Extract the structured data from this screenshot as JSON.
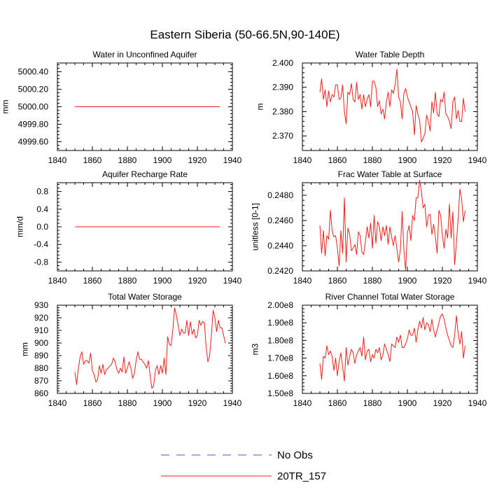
{
  "title": "Eastern Siberia (50-66.5N,90-140E)",
  "colors": {
    "model": "#e8201c",
    "obs": "#4a56c4",
    "frame": "#000000"
  },
  "legend": [
    {
      "label": "No Obs",
      "style": "dashed",
      "color": "#4a56c4"
    },
    {
      "label": "20TR_157",
      "style": "solid",
      "color": "#e8201c"
    }
  ],
  "chart_data": [
    {
      "type": "line",
      "title": "Water in Unconfined Aquifer",
      "ylabel": "mm",
      "xlim": [
        1840,
        1940
      ],
      "ylim": [
        4999.5,
        5000.5
      ],
      "xticks": [
        1840,
        1860,
        1880,
        1900,
        1920,
        1940
      ],
      "yticks": [
        4999.6,
        4999.8,
        5000.0,
        5000.2,
        5000.4
      ],
      "ytick_labels": [
        "4999.60",
        "4999.80",
        "5000.00",
        "5000.20",
        "5000.40"
      ],
      "series": [
        {
          "name": "20TR_157",
          "x_start": 1850,
          "x_step": 1,
          "values": [
            5000,
            5000,
            5000,
            5000,
            5000,
            5000,
            5000,
            5000,
            5000,
            5000,
            5000,
            5000,
            5000,
            5000,
            5000,
            5000,
            5000,
            5000,
            5000,
            5000,
            5000,
            5000,
            5000,
            5000,
            5000,
            5000,
            5000,
            5000,
            5000,
            5000,
            5000,
            5000,
            5000,
            5000,
            5000,
            5000,
            5000,
            5000,
            5000,
            5000,
            5000,
            5000,
            5000,
            5000,
            5000,
            5000,
            5000,
            5000,
            5000,
            5000,
            5000,
            5000,
            5000,
            5000,
            5000,
            5000,
            5000,
            5000,
            5000,
            5000,
            5000,
            5000,
            5000,
            5000,
            5000,
            5000,
            5000,
            5000,
            5000,
            5000,
            5000,
            5000,
            5000,
            5000,
            5000,
            5000,
            5000,
            5000,
            5000,
            5000,
            5000,
            5000,
            5000,
            5000
          ]
        }
      ]
    },
    {
      "type": "line",
      "title": "Water Table Depth",
      "ylabel": "m",
      "xlim": [
        1840,
        1940
      ],
      "ylim": [
        2.364,
        2.4
      ],
      "xticks": [
        1840,
        1860,
        1880,
        1900,
        1920,
        1940
      ],
      "yticks": [
        2.37,
        2.38,
        2.39,
        2.4
      ],
      "ytick_labels": [
        "2.370",
        "2.380",
        "2.390",
        "2.400"
      ],
      "series": [
        {
          "name": "20TR_157",
          "x_start": 1850,
          "x_step": 1,
          "values": [
            2.388,
            2.3935,
            2.385,
            2.389,
            2.382,
            2.3885,
            2.384,
            2.387,
            2.386,
            2.391,
            2.391,
            2.385,
            2.3855,
            2.391,
            2.38,
            2.375,
            2.388,
            2.387,
            2.3915,
            2.385,
            2.384,
            2.392,
            2.385,
            2.387,
            2.381,
            2.387,
            2.382,
            2.385,
            2.387,
            2.382,
            2.3925,
            2.3925,
            2.39,
            2.382,
            2.3845,
            2.379,
            2.381,
            2.377,
            2.384,
            2.388,
            2.382,
            2.389,
            2.3875,
            2.391,
            2.3975,
            2.386,
            2.384,
            2.377,
            2.3875,
            2.3895,
            2.386,
            2.384,
            2.382,
            2.38,
            2.3705,
            2.3825,
            2.379,
            2.3765,
            2.3675,
            2.369,
            2.371,
            2.3785,
            2.376,
            2.372,
            2.384,
            2.3795,
            2.388,
            2.379,
            2.378,
            2.385,
            2.384,
            2.388,
            2.379,
            2.378,
            2.376,
            2.373,
            2.384,
            2.386,
            2.377,
            2.3805,
            2.376,
            2.376,
            2.3855,
            2.38
          ]
        }
      ]
    },
    {
      "type": "line",
      "title": "Aquifer Recharge Rate",
      "ylabel": "mm/d",
      "xlim": [
        1840,
        1940
      ],
      "ylim": [
        -1,
        1
      ],
      "xticks": [
        1840,
        1860,
        1880,
        1900,
        1920,
        1940
      ],
      "yticks": [
        -0.8,
        -0.4,
        0,
        0.4,
        0.8
      ],
      "ytick_labels": [
        "-0.8",
        "-0.4",
        "0.0",
        "0.4",
        "0.8"
      ],
      "series": [
        {
          "name": "20TR_157",
          "x_start": 1850,
          "x_step": 1,
          "values": [
            0,
            0,
            0,
            0,
            0,
            0,
            0,
            0,
            0,
            0,
            0,
            0,
            0,
            0,
            0,
            0,
            0,
            0,
            0,
            0,
            0,
            0,
            0,
            0,
            0,
            0,
            0,
            0,
            0,
            0,
            0,
            0,
            0,
            0,
            0,
            0,
            0,
            0,
            0,
            0,
            0,
            0,
            0,
            0,
            0,
            0,
            0,
            0,
            0,
            0,
            0,
            0,
            0,
            0,
            0,
            0,
            0,
            0,
            0,
            0,
            0,
            0,
            0,
            0,
            0,
            0,
            0,
            0,
            0,
            0,
            0,
            0,
            0,
            0,
            0,
            0,
            0,
            0,
            0,
            0,
            0,
            0,
            0,
            0
          ]
        }
      ]
    },
    {
      "type": "line",
      "title": "Frac Water Table at Surface",
      "ylabel": "unitless [0-1]",
      "xlim": [
        1840,
        1940
      ],
      "ylim": [
        0.242,
        0.249
      ],
      "xticks": [
        1840,
        1860,
        1880,
        1900,
        1920,
        1940
      ],
      "yticks": [
        0.242,
        0.244,
        0.246,
        0.248
      ],
      "ytick_labels": [
        "0.2420",
        "0.2440",
        "0.2460",
        "0.2480"
      ],
      "series": [
        {
          "name": "20TR_157",
          "x_start": 1850,
          "x_step": 1,
          "values": [
            0.2456,
            0.2434,
            0.2452,
            0.2432,
            0.2448,
            0.2445,
            0.2468,
            0.2452,
            0.2447,
            0.2448,
            0.2438,
            0.2424,
            0.2452,
            0.2434,
            0.2478,
            0.2427,
            0.2454,
            0.2449,
            0.2436,
            0.2438,
            0.2441,
            0.2433,
            0.2451,
            0.2448,
            0.2435,
            0.2433,
            0.2443,
            0.2455,
            0.2446,
            0.2458,
            0.2438,
            0.2464,
            0.2442,
            0.2459,
            0.2455,
            0.2444,
            0.2455,
            0.2448,
            0.2456,
            0.2441,
            0.2455,
            0.2447,
            0.244,
            0.2448,
            0.2438,
            0.2427,
            0.2437,
            0.2467,
            0.2437,
            0.242,
            0.245,
            0.2456,
            0.2444,
            0.2464,
            0.246,
            0.2478,
            0.2478,
            0.2492,
            0.2483,
            0.247,
            0.2473,
            0.2455,
            0.2464,
            0.2465,
            0.2449,
            0.2457,
            0.2447,
            0.2434,
            0.2468,
            0.2464,
            0.2448,
            0.2438,
            0.2453,
            0.2446,
            0.2473,
            0.2446,
            0.2467,
            0.2425,
            0.2442,
            0.2461,
            0.2485,
            0.2477,
            0.2459,
            0.2468
          ]
        }
      ]
    },
    {
      "type": "line",
      "title": "Total Water Storage",
      "ylabel": "mm",
      "xlim": [
        1840,
        1940
      ],
      "ylim": [
        860,
        930
      ],
      "xticks": [
        1840,
        1860,
        1880,
        1900,
        1920,
        1940
      ],
      "yticks": [
        860,
        870,
        880,
        890,
        900,
        910,
        920,
        930
      ],
      "ytick_labels": [
        "860",
        "870",
        "880",
        "890",
        "900",
        "910",
        "920",
        "930"
      ],
      "series": [
        {
          "name": "20TR_157",
          "x_start": 1850,
          "x_step": 1,
          "values": [
            877,
            867,
            880,
            889,
            893,
            883,
            886,
            886,
            884,
            892,
            878,
            875,
            869,
            871,
            882,
            876,
            883,
            875,
            879,
            880,
            882,
            883,
            888,
            885,
            879,
            876,
            880,
            877,
            889,
            876,
            880,
            885,
            880,
            872,
            876,
            886,
            893,
            887,
            887,
            885,
            883,
            880,
            886,
            874,
            864,
            866,
            878,
            882,
            875,
            882,
            876,
            888,
            875,
            905,
            899,
            898,
            911,
            928,
            922,
            914,
            906,
            911,
            908,
            908,
            918,
            906,
            917,
            907,
            911,
            904,
            906,
            918,
            914,
            917,
            916,
            897,
            885,
            890,
            906,
            926,
            920,
            909,
            918,
            912,
            912,
            906,
            900
          ]
        }
      ]
    },
    {
      "type": "line",
      "title": "River Channel Total Water Storage",
      "ylabel": "m3",
      "xlim": [
        1840,
        1940
      ],
      "ylim": [
        150000000,
        200000000
      ],
      "xticks": [
        1840,
        1860,
        1880,
        1900,
        1920,
        1940
      ],
      "yticks": [
        150000000,
        160000000,
        170000000,
        180000000,
        190000000,
        200000000
      ],
      "ytick_labels": [
        "1.50e8",
        "1.60e8",
        "1.70e8",
        "1.80e8",
        "1.90e8",
        "2.00e8"
      ],
      "series": [
        {
          "name": "20TR_157",
          "x_start": 1850,
          "x_step": 1,
          "values": [
            167000000,
            158000000,
            171000000,
            170000000,
            177000000,
            172000000,
            174000000,
            171000000,
            163000000,
            170000000,
            160000000,
            168000000,
            173000000,
            165000000,
            157000000,
            176000000,
            166000000,
            171000000,
            175000000,
            173000000,
            167000000,
            172000000,
            174000000,
            176000000,
            171000000,
            182000000,
            169000000,
            174000000,
            175000000,
            168000000,
            172000000,
            170000000,
            175000000,
            173000000,
            176000000,
            169000000,
            172000000,
            178000000,
            175000000,
            172000000,
            168000000,
            178000000,
            177000000,
            176000000,
            182000000,
            179000000,
            183000000,
            176000000,
            176000000,
            178000000,
            181000000,
            186000000,
            183000000,
            183000000,
            187000000,
            179000000,
            186000000,
            191000000,
            187000000,
            193000000,
            186000000,
            190000000,
            189000000,
            185000000,
            192000000,
            186000000,
            182000000,
            186000000,
            190000000,
            194000000,
            195000000,
            192000000,
            187000000,
            183000000,
            180000000,
            177000000,
            176000000,
            183000000,
            194000000,
            184000000,
            178000000,
            185000000,
            170000000,
            177000000
          ]
        }
      ]
    }
  ]
}
